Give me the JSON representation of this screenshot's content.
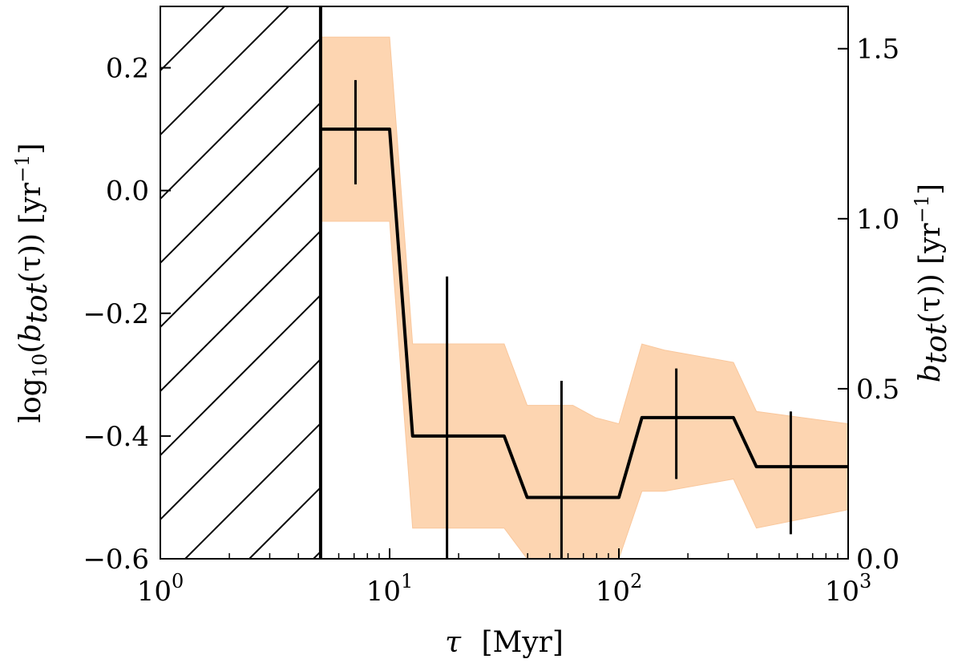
{
  "chart_data": {
    "type": "line",
    "title": "",
    "x_scale": "log",
    "xlim": [
      1,
      1000
    ],
    "ylim_left": [
      -0.6,
      0.3
    ],
    "ylim_right": [
      0.0,
      1.6243
    ],
    "xlabel": {
      "symbol": "τ",
      "unit": "[Myr]"
    },
    "ylabel_left": {
      "prefix": "log",
      "sub": "10",
      "open": "(",
      "b": "b",
      "b_sub": "tot",
      "tau": "(τ))",
      "unit": " [yr",
      "unit_sup": "−1",
      "close": "]"
    },
    "ylabel_right": {
      "b": "b",
      "b_sub": "tot",
      "tau": "(τ))",
      "unit": " [yr",
      "unit_sup": "−1",
      "close": "]"
    },
    "x_ticks": [
      {
        "value": 1,
        "base": "10",
        "exp": "0"
      },
      {
        "value": 10,
        "base": "10",
        "exp": "1"
      },
      {
        "value": 100,
        "base": "10",
        "exp": "2"
      },
      {
        "value": 1000,
        "base": "10",
        "exp": "3"
      }
    ],
    "y_ticks_left": [
      {
        "value": 0.2,
        "label": "0.2"
      },
      {
        "value": 0.0,
        "label": "0.0"
      },
      {
        "value": -0.2,
        "label": "−0.2"
      },
      {
        "value": -0.4,
        "label": "−0.4"
      },
      {
        "value": -0.6,
        "label": "−0.6"
      }
    ],
    "y_ticks_right": [
      {
        "value": 0.0,
        "label": "0.0"
      },
      {
        "value": 0.5,
        "label": "0.5"
      },
      {
        "value": 1.0,
        "label": "1.0"
      },
      {
        "value": 1.5,
        "label": "1.5"
      }
    ],
    "hatched_region": {
      "x_from": 1,
      "x_to": 5
    },
    "median_line": {
      "x": [
        5,
        10,
        12.6,
        31.6,
        39.8,
        100,
        126,
        316,
        398,
        1000
      ],
      "y": [
        0.1,
        0.1,
        -0.4,
        -0.4,
        -0.5,
        -0.5,
        -0.37,
        -0.37,
        -0.45,
        -0.45
      ]
    },
    "band": {
      "color": "#fdd5b1",
      "x": [
        5,
        10,
        12.6,
        31.6,
        39.8,
        63,
        79,
        100,
        126,
        158,
        316,
        398,
        1000
      ],
      "upper": [
        0.25,
        0.25,
        -0.25,
        -0.25,
        -0.35,
        -0.35,
        -0.37,
        -0.38,
        -0.25,
        -0.26,
        -0.28,
        -0.36,
        -0.38
      ],
      "lower": [
        -0.05,
        -0.05,
        -0.55,
        -0.55,
        -0.6,
        -0.6,
        -0.6,
        -0.6,
        -0.49,
        -0.49,
        -0.47,
        -0.55,
        -0.52
      ]
    },
    "error_bars": [
      {
        "x": 7.1,
        "low": 0.01,
        "high": 0.18
      },
      {
        "x": 17.8,
        "low": -0.6,
        "high": -0.14
      },
      {
        "x": 56.2,
        "low": -0.6,
        "high": -0.31
      },
      {
        "x": 178,
        "low": -0.47,
        "high": -0.29
      },
      {
        "x": 562,
        "low": -0.56,
        "high": -0.36
      }
    ]
  }
}
